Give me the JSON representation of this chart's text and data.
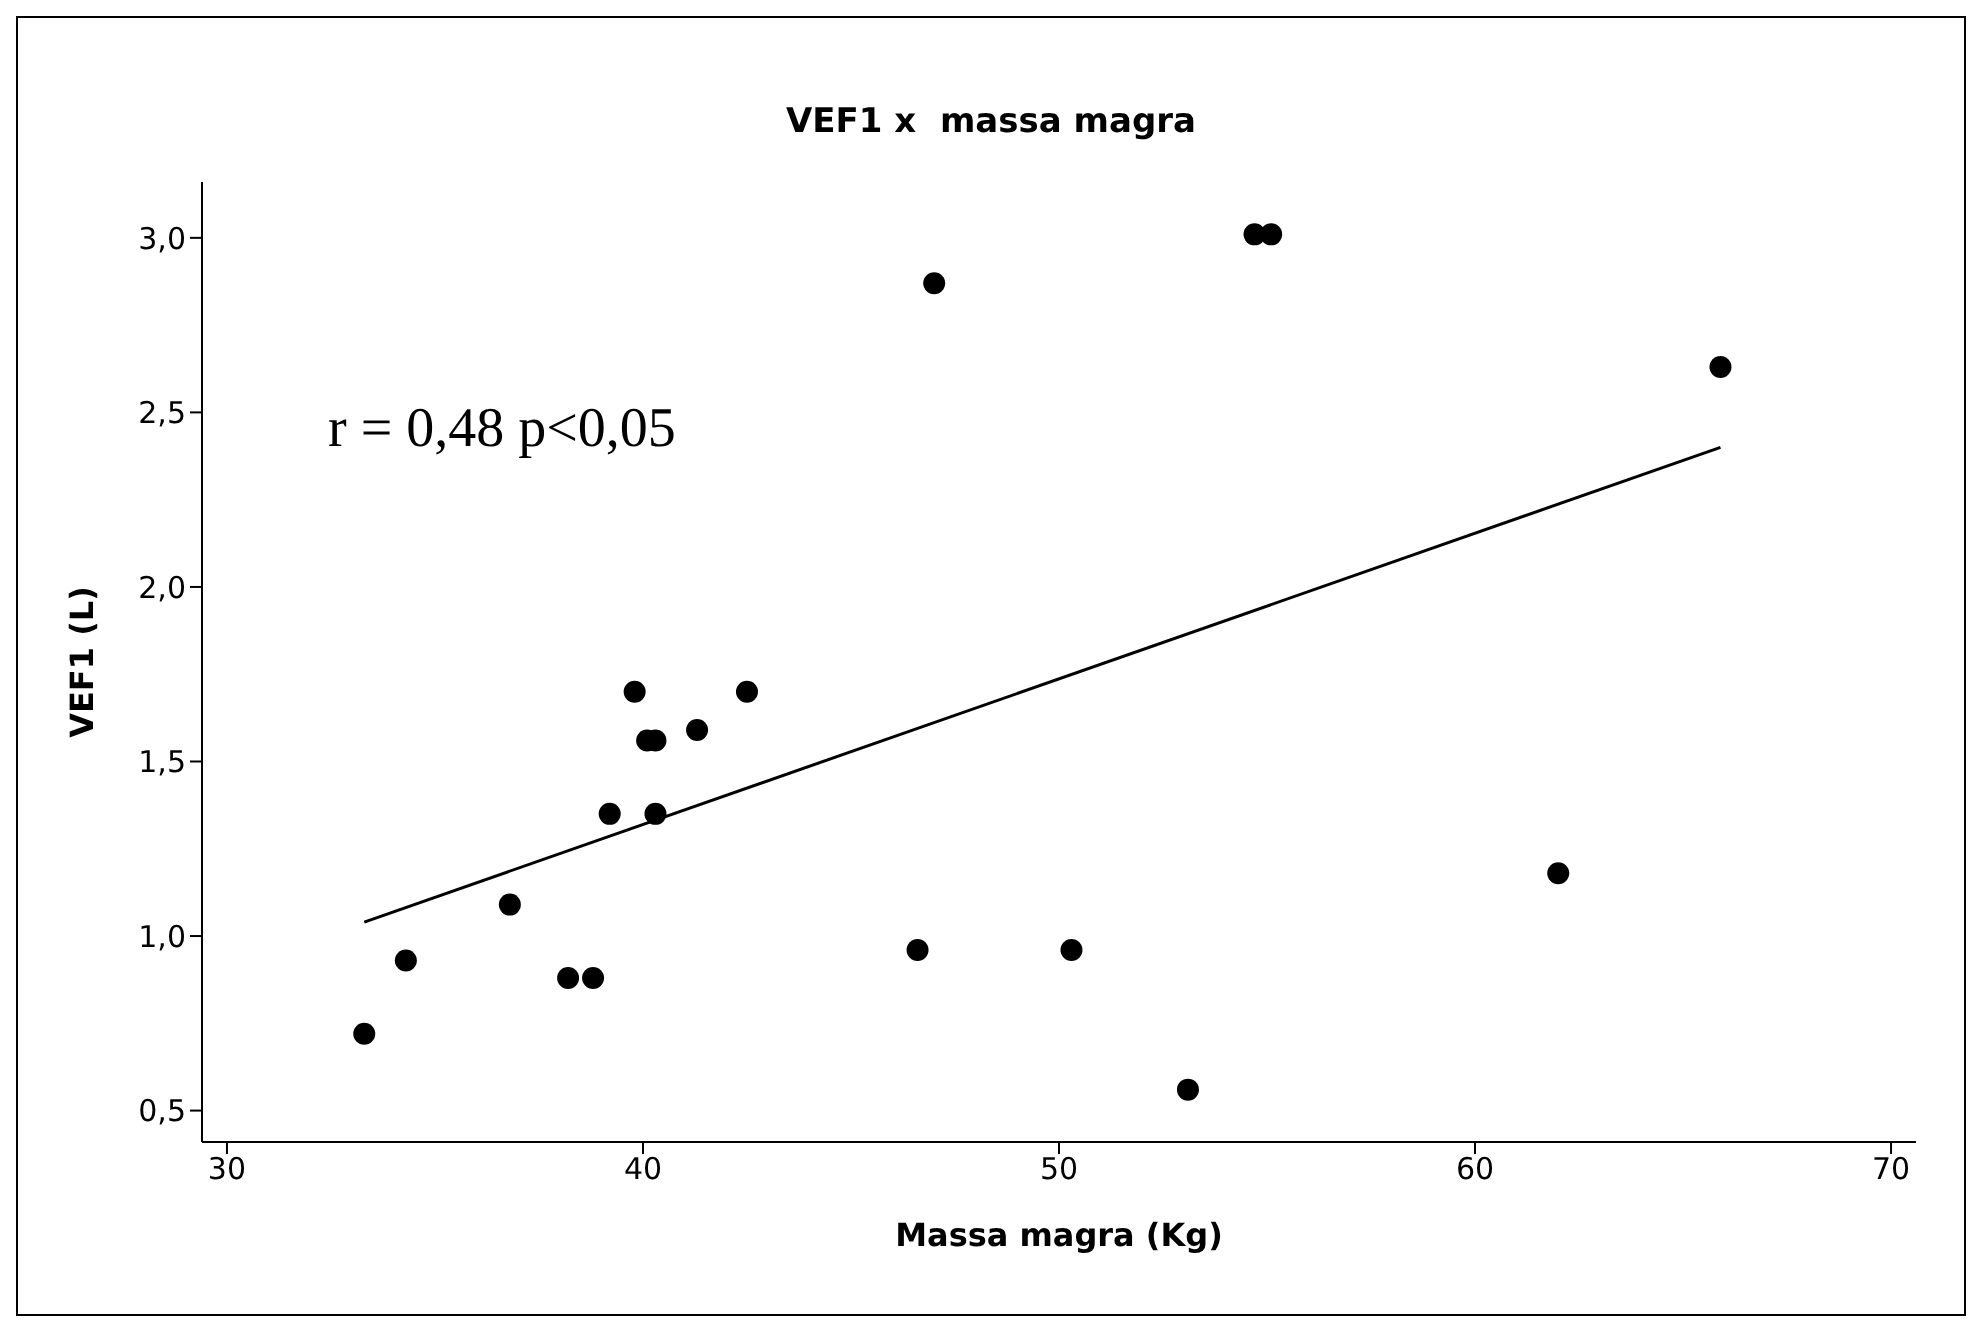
{
  "chart_data": {
    "type": "scatter",
    "title": "VEF1 x  massa magra",
    "xlabel": "Massa magra (Kg)",
    "ylabel": "VEF1 (L)",
    "annotations": [
      "r = 0,48 p<0,05"
    ],
    "xlim": [
      29.4,
      70.6
    ],
    "xticks": [
      30,
      40,
      50,
      60,
      70
    ],
    "ylim": [
      0.41,
      3.16
    ],
    "yticks": [
      {
        "value": 0.5,
        "label": "0,5"
      },
      {
        "value": 1,
        "label": "1,0"
      },
      {
        "value": 1.5,
        "label": "1,5"
      },
      {
        "value": 2,
        "label": "2,0"
      },
      {
        "value": 2.5,
        "label": "2,5"
      },
      {
        "value": 3,
        "label": "3,0"
      }
    ],
    "grid": false,
    "legend": false,
    "series": [
      {
        "color": "#000000",
        "marker": "circle",
        "x": [
          33.3,
          34.3,
          36.8,
          38.2,
          38.8,
          39.2,
          39.8,
          40.1,
          40.3,
          40.3,
          41.3,
          42.5,
          46.6,
          47.0,
          50.3,
          53.1,
          54.7,
          55.1,
          62.0,
          65.9
        ],
        "values": [
          0.72,
          0.93,
          1.09,
          0.88,
          0.88,
          1.35,
          1.7,
          1.56,
          1.56,
          1.35,
          1.59,
          1.7,
          0.96,
          2.87,
          0.96,
          0.56,
          3.01,
          3.01,
          1.18,
          2.63
        ]
      },
      {
        "type": "line",
        "color": "#000000",
        "marker": "none",
        "x": [
          33.3,
          65.9
        ],
        "values": [
          1.04,
          2.4
        ]
      }
    ]
  }
}
